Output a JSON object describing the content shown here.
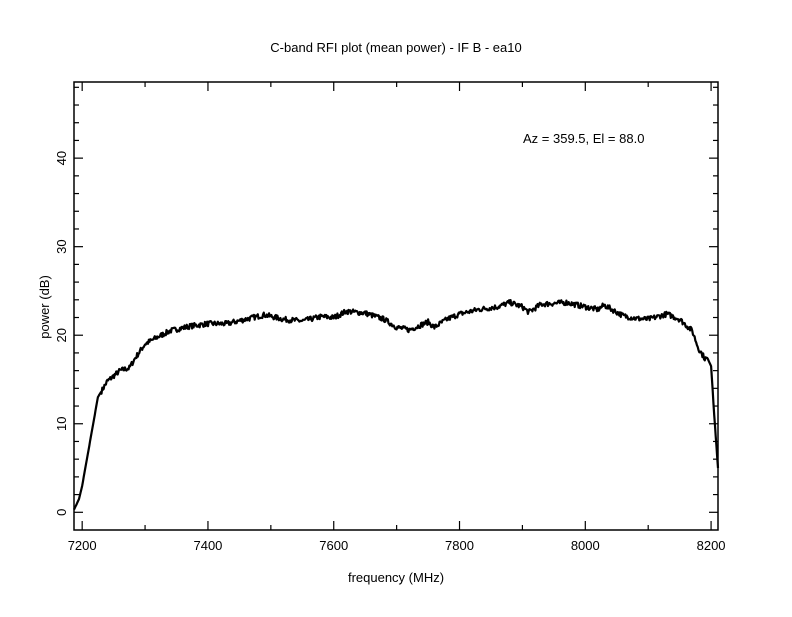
{
  "chart_data": {
    "type": "line",
    "title": "C-band RFI plot (mean power) - IF B - ea10",
    "xlabel": "frequency (MHz)",
    "ylabel": "power (dB)",
    "annotation": "Az = 359.5, El = 88.0",
    "xlim": [
      7187,
      8211
    ],
    "ylim": [
      -2,
      48.6
    ],
    "xticks": [
      7200,
      7400,
      7600,
      7800,
      8000,
      8200
    ],
    "yticks": [
      0,
      10,
      20,
      30,
      40
    ],
    "grid": false,
    "series": [
      {
        "name": "mean power",
        "color": "#000000",
        "x": [
          7187,
          7195,
          7200,
          7210,
          7220,
          7225,
          7240,
          7260,
          7275,
          7285,
          7300,
          7320,
          7340,
          7370,
          7400,
          7430,
          7460,
          7490,
          7520,
          7550,
          7580,
          7600,
          7620,
          7650,
          7680,
          7700,
          7720,
          7740,
          7750,
          7760,
          7780,
          7800,
          7830,
          7860,
          7880,
          7900,
          7910,
          7930,
          7950,
          7970,
          8000,
          8020,
          8030,
          8060,
          8080,
          8100,
          8130,
          8150,
          8170,
          8180,
          8190,
          8195,
          8200,
          8205,
          8211
        ],
        "y": [
          0.3,
          1.5,
          3,
          7,
          11,
          13,
          14.8,
          16,
          16.3,
          17.5,
          19,
          19.8,
          20.5,
          21,
          21.3,
          21.3,
          21.8,
          22.3,
          21.8,
          21.6,
          22.1,
          22.0,
          22.7,
          22.5,
          21.8,
          20.9,
          20.6,
          21.2,
          21.5,
          20.9,
          21.8,
          22.4,
          22.9,
          23.2,
          23.7,
          23.2,
          22.6,
          23.5,
          23.6,
          23.7,
          23.2,
          22.9,
          23.4,
          22.2,
          21.9,
          21.8,
          22.4,
          21.8,
          20.5,
          18.5,
          17.4,
          17.3,
          16.5,
          11,
          5
        ]
      }
    ]
  }
}
